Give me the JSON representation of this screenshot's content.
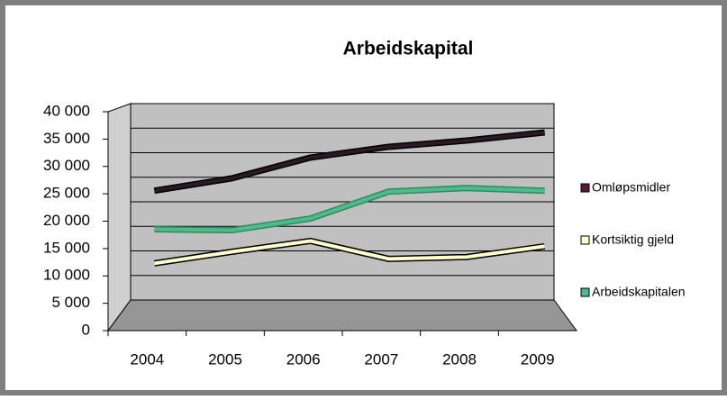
{
  "chart_data": {
    "type": "line",
    "title": "Arbeidskapital",
    "categories": [
      "2004",
      "2005",
      "2006",
      "2007",
      "2008",
      "2009"
    ],
    "series": [
      {
        "name": "Omløpsmidler",
        "color": "#5a1a34",
        "values": [
          24050,
          26470,
          30450,
          32530,
          33740,
          35300
        ]
      },
      {
        "name": "Kortsiktig gjeld",
        "color": "#ffffcc",
        "values": [
          10030,
          12280,
          14360,
          10900,
          11250,
          13320
        ]
      },
      {
        "name": "Arbeidskapitalen",
        "color": "#4dbb8a",
        "values": [
          16600,
          16440,
          18690,
          23880,
          24570,
          24050
        ]
      }
    ],
    "ylim": [
      0,
      40000
    ],
    "yticks": [
      {
        "value": 0,
        "label": "0"
      },
      {
        "value": 5000,
        "label": "5 000"
      },
      {
        "value": 10000,
        "label": "10 000"
      },
      {
        "value": 15000,
        "label": "15 000"
      },
      {
        "value": 20000,
        "label": "20 000"
      },
      {
        "value": 25000,
        "label": "25 000"
      },
      {
        "value": 30000,
        "label": "30 000"
      },
      {
        "value": 35000,
        "label": "35 000"
      },
      {
        "value": 40000,
        "label": "40 000"
      }
    ],
    "grid": true,
    "legend": "right"
  }
}
